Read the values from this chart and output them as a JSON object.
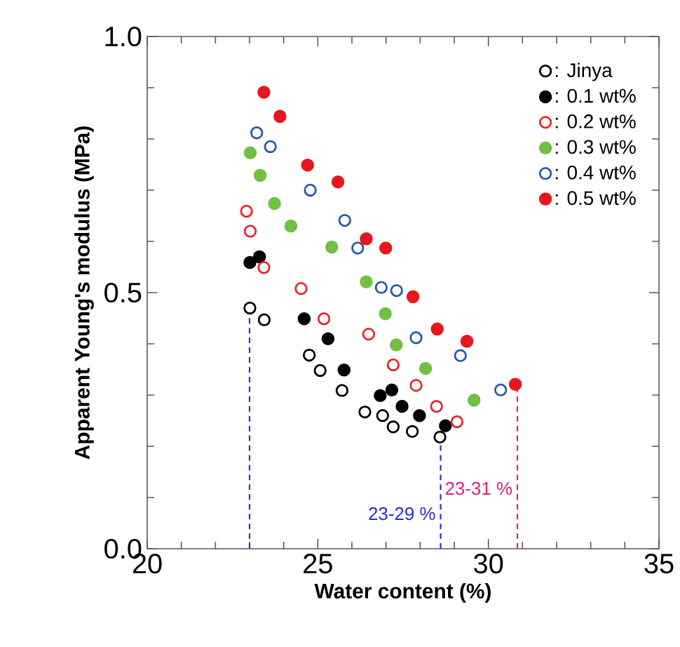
{
  "chart_data": {
    "type": "scatter",
    "xlabel": "Water content (%)",
    "ylabel": "Apparent Young's modulus (MPa)",
    "xlim": [
      20,
      35
    ],
    "xticks": [
      20,
      25,
      30,
      35
    ],
    "ylim": [
      0,
      1
    ],
    "yticks": [
      {
        "value": 0,
        "label": "0.0"
      },
      {
        "value": 0.5,
        "label": "0.5"
      },
      {
        "value": 1,
        "label": "1.0"
      }
    ],
    "grid": false,
    "legend": "top right",
    "series": [
      {
        "name": ": Jinya",
        "color": "#000000",
        "marker": "circle_open",
        "x": [
          23.01,
          23.43,
          24.75,
          25.07,
          25.71,
          26.38,
          26.9,
          27.21,
          27.77,
          28.58
        ],
        "values": [
          0.47,
          0.447,
          0.378,
          0.348,
          0.309,
          0.267,
          0.26,
          0.238,
          0.229,
          0.218
        ]
      },
      {
        "name": ": 0.1 wt%",
        "color": "#000000",
        "marker": "circle",
        "x": [
          23.01,
          23.29,
          24.6,
          25.3,
          25.77,
          26.83,
          27.17,
          27.47,
          27.98,
          28.74
        ],
        "values": [
          0.559,
          0.57,
          0.449,
          0.41,
          0.349,
          0.299,
          0.31,
          0.278,
          0.26,
          0.24
        ]
      },
      {
        "name": ": 0.2 wt%",
        "color": "#e8262e",
        "marker": "circle_open",
        "x": [
          22.91,
          23.02,
          23.42,
          24.51,
          25.18,
          26.49,
          27.21,
          27.88,
          28.48,
          29.08
        ],
        "values": [
          0.659,
          0.62,
          0.549,
          0.508,
          0.449,
          0.419,
          0.359,
          0.319,
          0.278,
          0.248
        ]
      },
      {
        "name": ": 0.3 wt%",
        "color": "#72bf44",
        "marker": "circle",
        "x": [
          23.02,
          23.31,
          23.73,
          24.21,
          25.41,
          26.42,
          26.98,
          27.3,
          28.16,
          29.58
        ],
        "values": [
          0.773,
          0.729,
          0.674,
          0.63,
          0.589,
          0.521,
          0.459,
          0.398,
          0.352,
          0.29
        ]
      },
      {
        "name": ": 0.4 wt%",
        "color": "#2a5aa8",
        "marker": "circle_open",
        "x": [
          23.21,
          23.61,
          24.78,
          25.79,
          26.17,
          26.86,
          27.31,
          27.88,
          29.18,
          30.36
        ],
        "values": [
          0.812,
          0.785,
          0.7,
          0.641,
          0.587,
          0.51,
          0.504,
          0.412,
          0.377,
          0.31
        ]
      },
      {
        "name": ": 0.5 wt%",
        "color": "#e8161e",
        "marker": "circle",
        "x": [
          23.42,
          23.89,
          24.7,
          25.59,
          26.42,
          26.99,
          27.79,
          28.5,
          29.37,
          30.79
        ],
        "values": [
          0.891,
          0.844,
          0.749,
          0.716,
          0.605,
          0.587,
          0.492,
          0.429,
          0.405,
          0.321
        ]
      },
      {
        "type": "line",
        "color": "#2b2bd6",
        "line_style": "dashed",
        "marker": "none",
        "x": [
          23.0,
          23.0
        ],
        "values": [
          0,
          0.47
        ]
      },
      {
        "type": "line",
        "color": "#2b2bd6",
        "line_style": "dashed",
        "marker": "none",
        "x": [
          28.6,
          28.6
        ],
        "values": [
          0,
          0.218
        ]
      },
      {
        "type": "line",
        "color": "#e0207a",
        "line_style": "dashed",
        "marker": "none",
        "x": [
          30.85,
          30.85
        ],
        "values": [
          0,
          0.321
        ]
      }
    ],
    "annotations": [
      "23-29 %",
      "23-31 %"
    ]
  }
}
